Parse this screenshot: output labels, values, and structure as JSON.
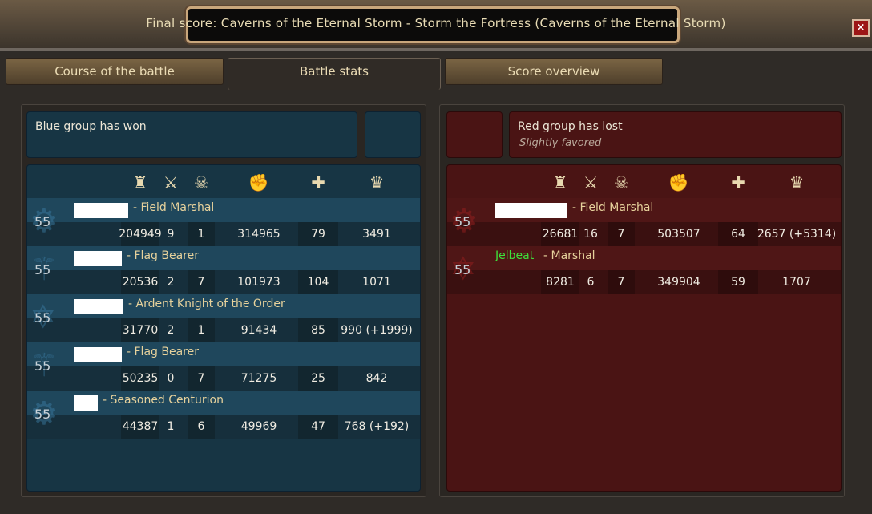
{
  "window": {
    "title": "Final score: Caverns of the Eternal Storm - Storm the Fortress (Caverns of the Eternal Storm)",
    "close_label": "×"
  },
  "tabs": [
    {
      "label": "Course of the battle",
      "active": false
    },
    {
      "label": "Battle stats",
      "active": true
    },
    {
      "label": "Score overview",
      "active": false
    }
  ],
  "columns": [
    {
      "icon": "tower-icon",
      "glyph": "♜"
    },
    {
      "icon": "crossed-swords-icon",
      "glyph": "⚔"
    },
    {
      "icon": "skull-icon",
      "glyph": "☠"
    },
    {
      "icon": "fist-icon",
      "glyph": "✊"
    },
    {
      "icon": "heal-plus-icon",
      "glyph": "✚"
    },
    {
      "icon": "crown-icon",
      "glyph": "♛"
    }
  ],
  "blue": {
    "color": "#173544",
    "status": "Blue group has won",
    "players": [
      {
        "name": "",
        "rank": "Field Marshal",
        "level": "55",
        "class_icon": "gear-class-icon",
        "stats": [
          "204949",
          "9",
          "1",
          "314965",
          "79",
          "3491"
        ]
      },
      {
        "name": "",
        "rank": "Flag Bearer",
        "level": "55",
        "class_icon": "staff-class-icon",
        "stats": [
          "20536",
          "2",
          "7",
          "101973",
          "104",
          "1071"
        ]
      },
      {
        "name": "",
        "rank": "Ardent Knight of the Order",
        "level": "55",
        "class_icon": "pentagram-class-icon",
        "stats": [
          "31770",
          "2",
          "1",
          "91434",
          "85",
          "990 (+1999)"
        ]
      },
      {
        "name": "",
        "rank": "Flag Bearer",
        "level": "55",
        "class_icon": "staff-class-icon",
        "stats": [
          "50235",
          "0",
          "7",
          "71275",
          "25",
          "842"
        ]
      },
      {
        "name": "",
        "rank": "Seasoned Centurion",
        "level": "55",
        "class_icon": "gear-class-icon",
        "stats": [
          "44387",
          "1",
          "6",
          "49969",
          "47",
          "768 (+192)"
        ]
      }
    ]
  },
  "red": {
    "color": "#4a1414",
    "status": "Red group has lost",
    "substatus": "Slightly favored",
    "players": [
      {
        "name": "",
        "rank": "Field Marshal",
        "level": "55",
        "class_icon": "gear-class-icon",
        "stats": [
          "26681",
          "16",
          "7",
          "503507",
          "64",
          "2657 (+5314)"
        ]
      },
      {
        "name": "Jelbeat",
        "name_color": "#3ee03a",
        "rank": "Marshal",
        "level": "55",
        "class_icon": "pentagram-class-icon",
        "stats": [
          "8281",
          "6",
          "7",
          "349904",
          "59",
          "1707"
        ]
      }
    ]
  }
}
